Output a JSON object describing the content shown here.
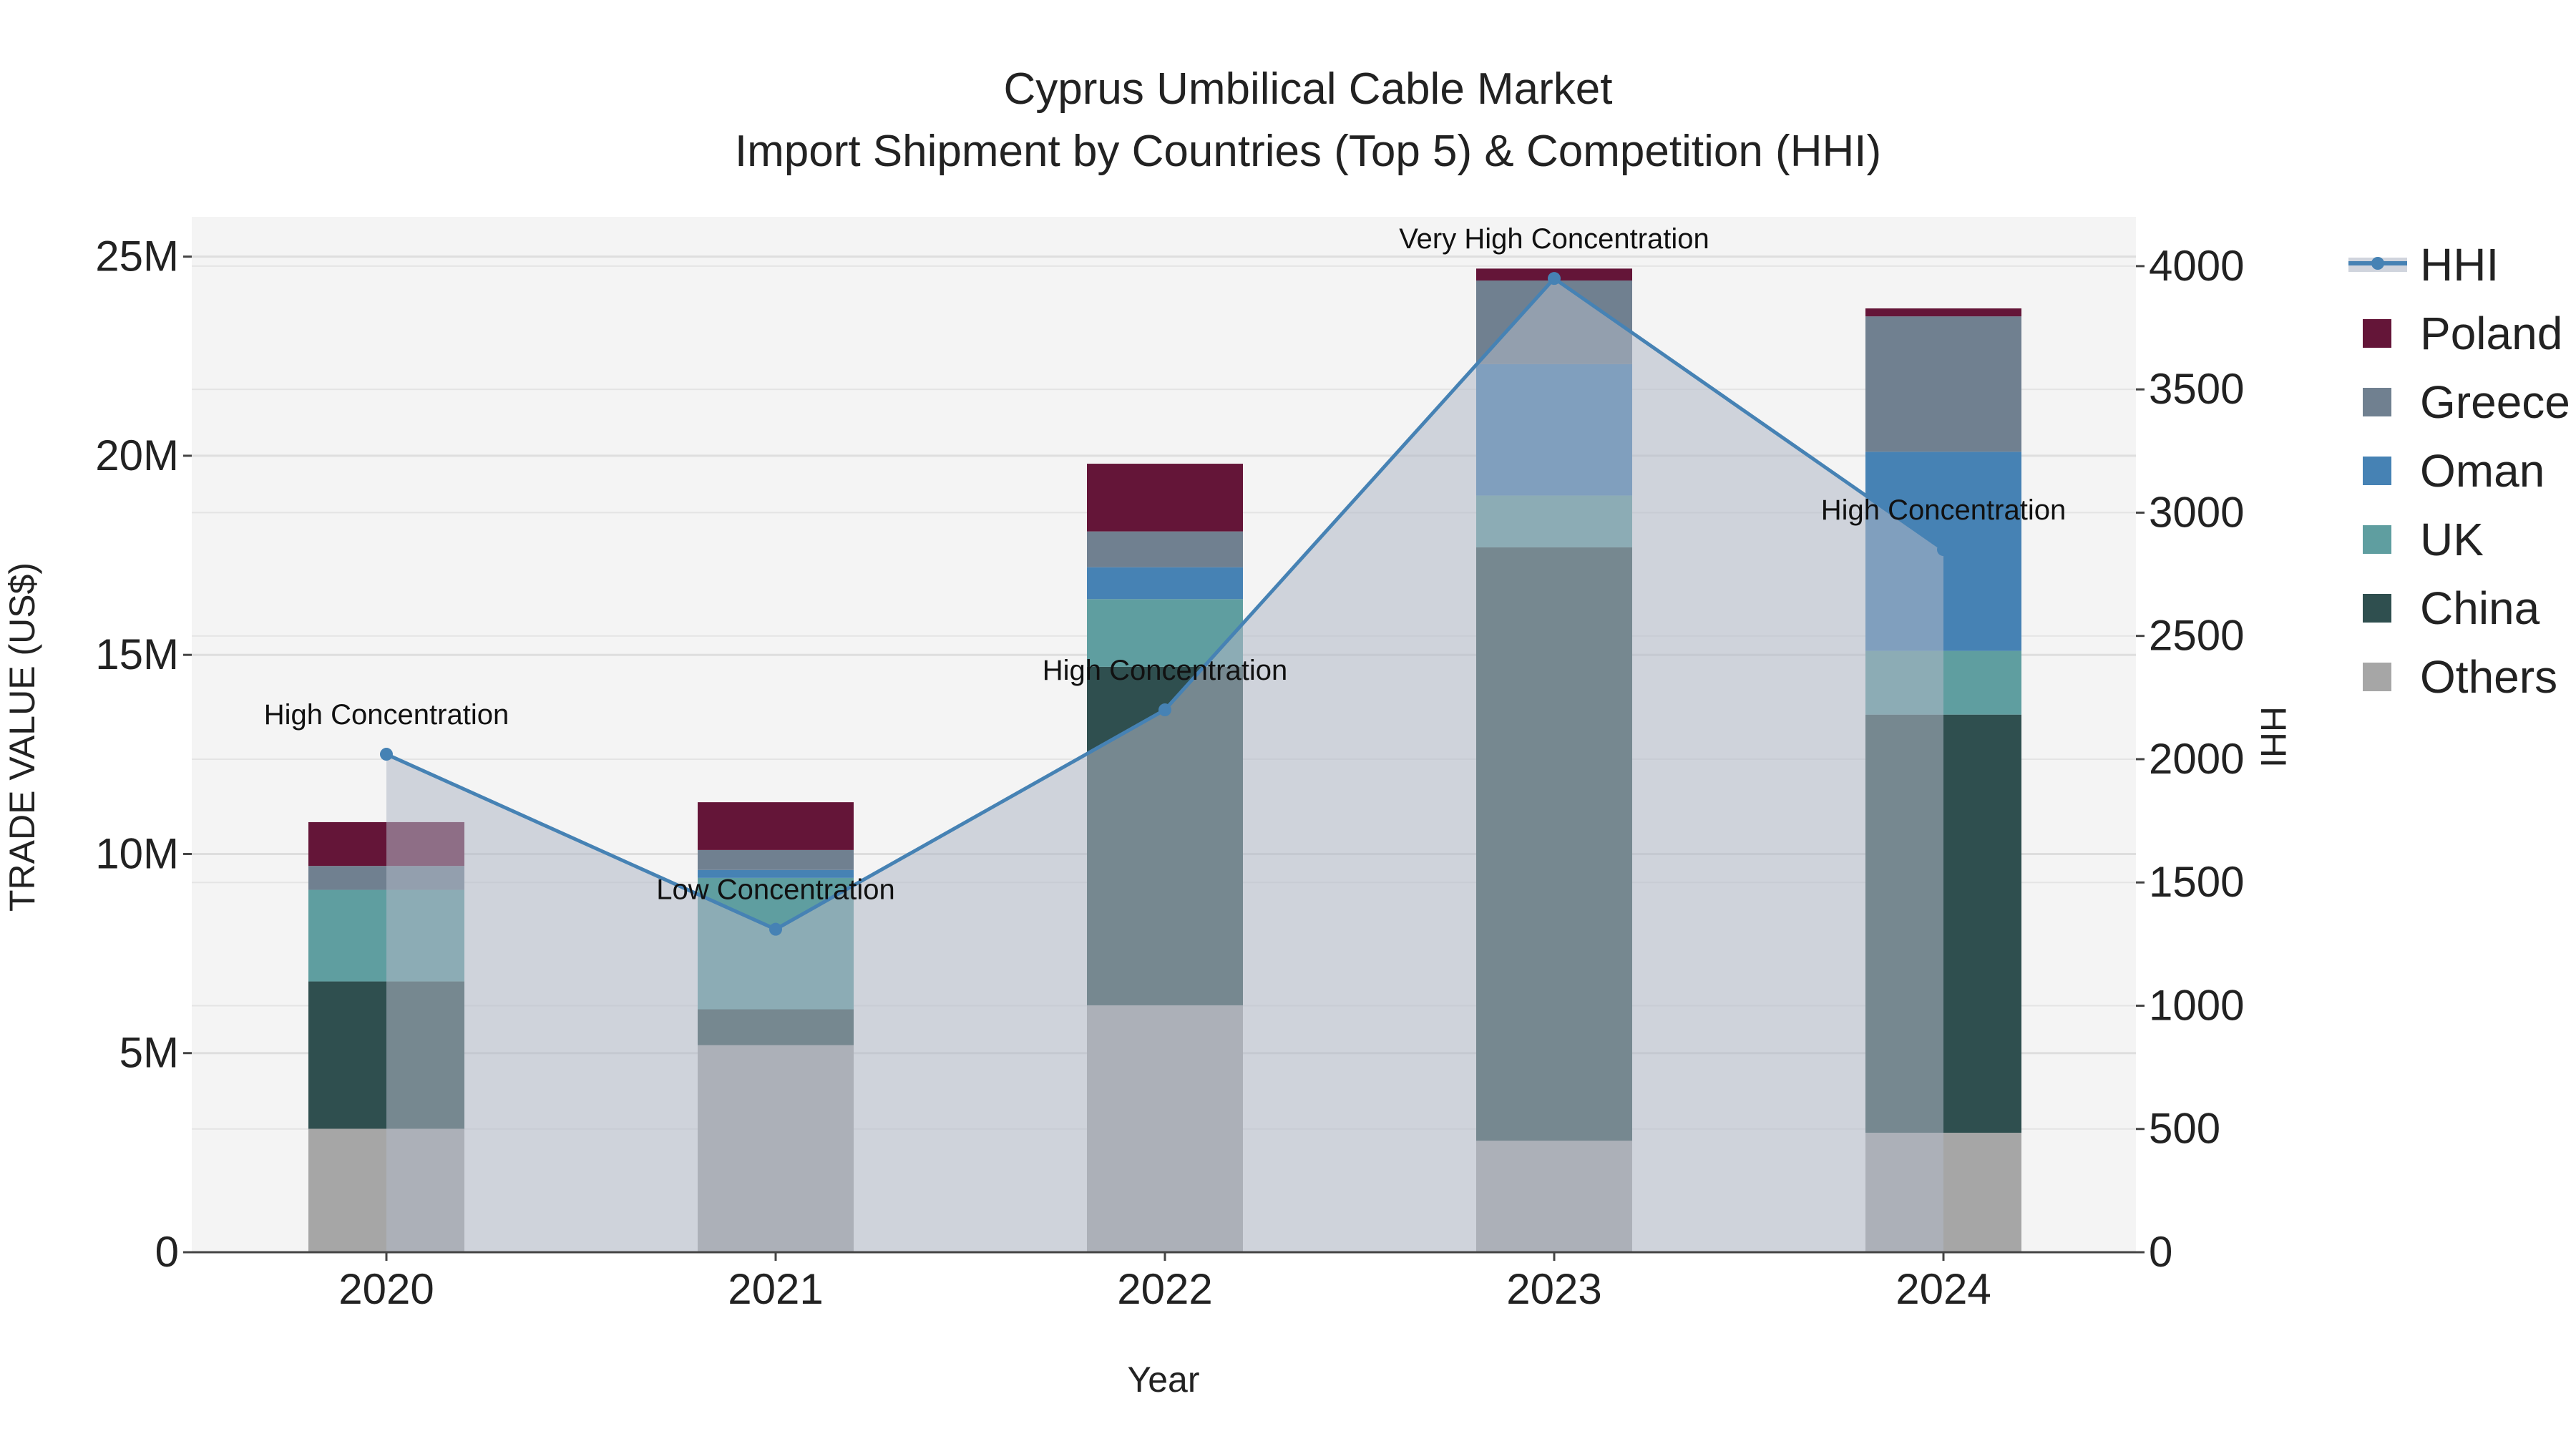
{
  "chart_data": {
    "type": "bar",
    "title_line1": "Cyprus Umbilical Cable Market",
    "title_line2": "Import Shipment by Countries (Top 5) & Competition (HHI)",
    "xlabel": "Year",
    "ylabel": "TRADE VALUE (US$)",
    "y2label": "HHI",
    "categories": [
      "2020",
      "2021",
      "2022",
      "2023",
      "2024"
    ],
    "ylim": [
      0,
      26000000
    ],
    "y2lim": [
      0,
      4200
    ],
    "yticks": [
      0,
      5000000,
      10000000,
      15000000,
      20000000,
      25000000
    ],
    "ytick_labels": [
      "0",
      "5M",
      "10M",
      "15M",
      "20M",
      "25M"
    ],
    "y2ticks": [
      0,
      500,
      1000,
      1500,
      2000,
      2500,
      3000,
      3500,
      4000
    ],
    "y2tick_labels": [
      "0",
      "500",
      "1000",
      "1500",
      "2000",
      "2500",
      "3000",
      "3500",
      "4000"
    ],
    "series": [
      {
        "name": "Others",
        "color": "#a6a6a6",
        "values": [
          3100000,
          5200000,
          6200000,
          2800000,
          3000000
        ]
      },
      {
        "name": "China",
        "color": "#2f4f4f",
        "values": [
          3700000,
          900000,
          8500000,
          14900000,
          10500000
        ]
      },
      {
        "name": "UK",
        "color": "#5f9ea0",
        "values": [
          2300000,
          3300000,
          1700000,
          1300000,
          1600000
        ]
      },
      {
        "name": "Oman",
        "color": "#4682b4",
        "values": [
          0,
          200000,
          800000,
          3300000,
          5000000
        ]
      },
      {
        "name": "Greece",
        "color": "#708090",
        "values": [
          600000,
          500000,
          900000,
          2100000,
          3400000
        ]
      },
      {
        "name": "Poland",
        "color": "#641538",
        "values": [
          1100000,
          1200000,
          1700000,
          300000,
          200000
        ]
      }
    ],
    "hhi": {
      "name": "HHI",
      "color": "#4682b4",
      "values": [
        2020,
        1310,
        2200,
        3950,
        2850
      ],
      "labels": [
        "High Concentration",
        "Low Concentration",
        "High Concentration",
        "Very High Concentration",
        "High Concentration"
      ]
    },
    "legend": [
      "HHI",
      "Poland",
      "Greece",
      "Oman",
      "UK",
      "China",
      "Others"
    ]
  }
}
